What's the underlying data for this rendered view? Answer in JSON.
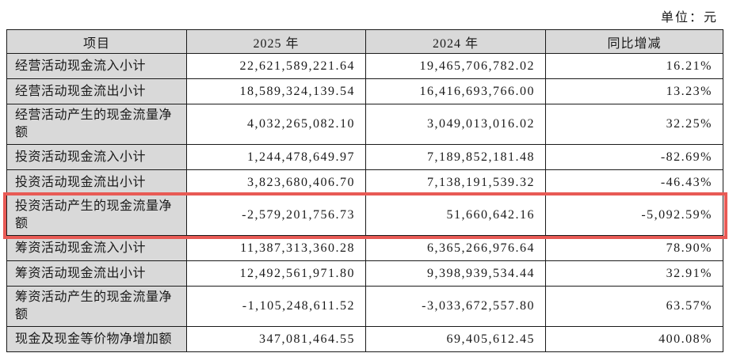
{
  "meta": {
    "unit_label": "单位：元"
  },
  "colors": {
    "header_bg": "#d9d9d9",
    "label_bg": "#d9d9d9",
    "border": "#1a1a1a",
    "text": "#1a1a1a",
    "highlight_border": "#e85a55"
  },
  "table": {
    "columns": [
      "项目",
      "2025 年",
      "2024 年",
      "同比增减"
    ],
    "rows": [
      {
        "item": "经营活动现金流入小计",
        "y2025": "22,621,589,221.64",
        "y2024": "19,465,706,782.02",
        "yoy": "16.21%",
        "highlighted": false
      },
      {
        "item": "经营活动现金流出小计",
        "y2025": "18,589,324,139.54",
        "y2024": "16,416,693,766.00",
        "yoy": "13.23%",
        "highlighted": false
      },
      {
        "item": "经营活动产生的现金流量净额",
        "y2025": "4,032,265,082.10",
        "y2024": "3,049,013,016.02",
        "yoy": "32.25%",
        "highlighted": false
      },
      {
        "item": "投资活动现金流入小计",
        "y2025": "1,244,478,649.97",
        "y2024": "7,189,852,181.48",
        "yoy": "-82.69%",
        "highlighted": false
      },
      {
        "item": "投资活动现金流出小计",
        "y2025": "3,823,680,406.70",
        "y2024": "7,138,191,539.32",
        "yoy": "-46.43%",
        "highlighted": false
      },
      {
        "item": "投资活动产生的现金流量净额",
        "y2025": "-2,579,201,756.73",
        "y2024": "51,660,642.16",
        "yoy": "-5,092.59%",
        "highlighted": true
      },
      {
        "item": "筹资活动现金流入小计",
        "y2025": "11,387,313,360.28",
        "y2024": "6,365,266,976.64",
        "yoy": "78.90%",
        "highlighted": false
      },
      {
        "item": "筹资活动现金流出小计",
        "y2025": "12,492,561,971.80",
        "y2024": "9,398,939,534.44",
        "yoy": "32.91%",
        "highlighted": false
      },
      {
        "item": "筹资活动产生的现金流量净额",
        "y2025": "-1,105,248,611.52",
        "y2024": "-3,033,672,557.80",
        "yoy": "63.57%",
        "highlighted": false
      },
      {
        "item": "现金及现金等价物净增加额",
        "y2025": "347,081,464.55",
        "y2024": "69,405,612.45",
        "yoy": "400.08%",
        "highlighted": false
      }
    ]
  }
}
